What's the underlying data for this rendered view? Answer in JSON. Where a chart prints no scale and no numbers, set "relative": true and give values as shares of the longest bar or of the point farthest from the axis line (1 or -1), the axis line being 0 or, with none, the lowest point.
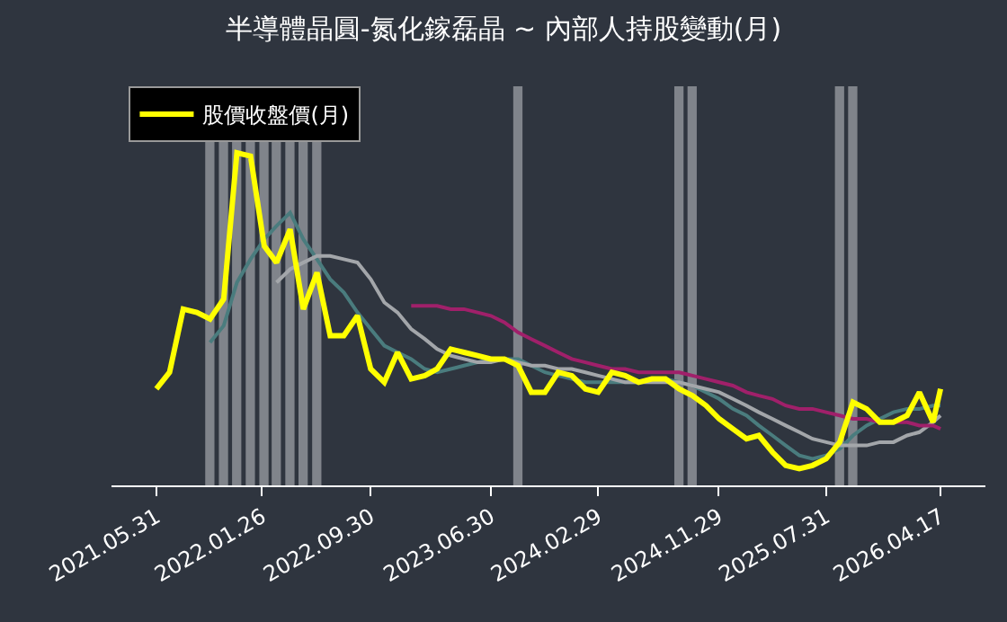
{
  "chart_data": {
    "type": "line",
    "title": "半導體晶圓-氮化鎵磊晶 ~ 內部人持股變動(月)",
    "relative": true,
    "legend": "top left",
    "grid": false,
    "marker": "none",
    "line_style": "solid",
    "xlim": [
      "2021-02-18",
      "2026-07-28"
    ],
    "xticks": [
      {
        "value": "2021-05-31",
        "label": "2021.05.31"
      },
      {
        "value": "2022-01-26",
        "label": "2022.01.26"
      },
      {
        "value": "2022-09-30",
        "label": "2022.09.30"
      },
      {
        "value": "2023-06-30",
        "label": "2023.06.30"
      },
      {
        "value": "2024-02-29",
        "label": "2024.02.29"
      },
      {
        "value": "2024-11-29",
        "label": "2024.11.29"
      },
      {
        "value": "2025-07-31",
        "label": "2025.07.31"
      },
      {
        "value": "2026-04-17",
        "label": "2026.04.17"
      }
    ],
    "x": [
      "2021-05-31",
      "2021-06-30",
      "2021-07-31",
      "2021-08-31",
      "2021-09-30",
      "2021-10-31",
      "2021-11-30",
      "2021-12-31",
      "2022-01-31",
      "2022-02-28",
      "2022-03-31",
      "2022-04-30",
      "2022-05-31",
      "2022-06-30",
      "2022-07-31",
      "2022-08-31",
      "2022-09-30",
      "2022-10-31",
      "2022-11-30",
      "2022-12-31",
      "2023-01-31",
      "2023-02-28",
      "2023-03-31",
      "2023-04-30",
      "2023-05-31",
      "2023-06-30",
      "2023-07-31",
      "2023-08-31",
      "2023-09-30",
      "2023-10-31",
      "2023-11-30",
      "2023-12-31",
      "2024-01-31",
      "2024-02-29",
      "2024-03-31",
      "2024-04-30",
      "2024-05-31",
      "2024-06-30",
      "2024-07-31",
      "2024-08-31",
      "2024-09-30",
      "2024-10-31",
      "2024-11-30",
      "2024-12-31",
      "2025-01-31",
      "2025-02-28",
      "2025-03-31",
      "2025-04-30",
      "2025-05-31",
      "2025-06-30",
      "2025-07-31",
      "2025-08-31",
      "2025-09-30",
      "2025-10-31",
      "2025-11-30",
      "2025-12-31",
      "2026-01-31",
      "2026-02-28",
      "2026-03-31",
      "2026-04-17"
    ],
    "series": [
      {
        "name": "股價收盤價(月)",
        "color": "#ffff00",
        "values": [
          0.29,
          0.34,
          0.53,
          0.52,
          0.5,
          0.56,
          1.0,
          0.99,
          0.72,
          0.67,
          0.77,
          0.53,
          0.64,
          0.45,
          0.45,
          0.51,
          0.35,
          0.31,
          0.4,
          0.32,
          0.33,
          0.35,
          0.41,
          0.4,
          0.39,
          0.38,
          0.38,
          0.36,
          0.28,
          0.28,
          0.34,
          0.33,
          0.29,
          0.28,
          0.34,
          0.33,
          0.31,
          0.32,
          0.32,
          0.29,
          0.27,
          0.24,
          0.2,
          0.17,
          0.14,
          0.15,
          0.1,
          0.06,
          0.05,
          0.06,
          0.08,
          0.13,
          0.25,
          0.23,
          0.19,
          0.19,
          0.21,
          0.28,
          0.19,
          0.29
        ]
      },
      {
        "color": "#4a7c7e",
        "values": [
          null,
          null,
          null,
          null,
          0.43,
          0.48,
          0.61,
          0.68,
          0.74,
          0.78,
          0.82,
          0.74,
          0.68,
          0.62,
          0.58,
          0.52,
          0.47,
          0.42,
          0.4,
          0.38,
          0.35,
          0.34,
          0.35,
          0.36,
          0.37,
          0.38,
          0.38,
          0.38,
          0.36,
          0.34,
          0.33,
          0.32,
          0.31,
          0.31,
          0.31,
          0.31,
          0.31,
          0.32,
          0.32,
          0.31,
          0.3,
          0.28,
          0.26,
          0.23,
          0.21,
          0.18,
          0.15,
          0.12,
          0.09,
          0.08,
          0.09,
          0.11,
          0.15,
          0.18,
          0.2,
          0.22,
          0.23,
          0.23,
          0.24,
          0.24
        ]
      },
      {
        "color": "#a3a6aa",
        "values": [
          null,
          null,
          null,
          null,
          null,
          null,
          null,
          null,
          null,
          0.61,
          0.65,
          0.67,
          0.69,
          0.69,
          0.68,
          0.67,
          0.62,
          0.55,
          0.52,
          0.47,
          0.44,
          0.41,
          0.39,
          0.38,
          0.37,
          0.37,
          0.38,
          0.37,
          0.36,
          0.36,
          0.35,
          0.35,
          0.34,
          0.33,
          0.32,
          0.31,
          0.31,
          0.31,
          0.31,
          0.31,
          0.3,
          0.29,
          0.28,
          0.26,
          0.24,
          0.22,
          0.2,
          0.18,
          0.16,
          0.14,
          0.13,
          0.12,
          0.12,
          0.12,
          0.13,
          0.13,
          0.15,
          0.16,
          0.19,
          0.21
        ]
      },
      {
        "color": "#a0206a",
        "values": [
          null,
          null,
          null,
          null,
          null,
          null,
          null,
          null,
          null,
          null,
          null,
          null,
          null,
          null,
          null,
          null,
          null,
          null,
          null,
          0.54,
          0.54,
          0.54,
          0.53,
          0.53,
          0.52,
          0.51,
          0.49,
          0.46,
          0.44,
          0.42,
          0.4,
          0.38,
          0.37,
          0.36,
          0.35,
          0.35,
          0.34,
          0.34,
          0.34,
          0.34,
          0.33,
          0.32,
          0.31,
          0.3,
          0.28,
          0.27,
          0.26,
          0.24,
          0.23,
          0.23,
          0.22,
          0.21,
          0.2,
          0.2,
          0.19,
          0.19,
          0.19,
          0.18,
          0.18,
          0.17
        ]
      }
    ],
    "bands": [
      {
        "axis": "x",
        "from": "2021-09-19",
        "to": "2021-10-10",
        "color": "#80848b"
      },
      {
        "axis": "x",
        "from": "2021-10-20",
        "to": "2021-11-10",
        "color": "#80848b"
      },
      {
        "axis": "x",
        "from": "2021-11-19",
        "to": "2021-12-10",
        "color": "#80848b"
      },
      {
        "axis": "x",
        "from": "2021-12-20",
        "to": "2022-01-10",
        "color": "#80848b"
      },
      {
        "axis": "x",
        "from": "2022-01-20",
        "to": "2022-02-10",
        "color": "#80848b"
      },
      {
        "axis": "x",
        "from": "2022-02-17",
        "to": "2022-03-10",
        "color": "#80848b"
      },
      {
        "axis": "x",
        "from": "2022-03-20",
        "to": "2022-04-10",
        "color": "#80848b"
      },
      {
        "axis": "x",
        "from": "2022-04-19",
        "to": "2022-05-10",
        "color": "#80848b"
      },
      {
        "axis": "x",
        "from": "2022-05-20",
        "to": "2022-06-10",
        "color": "#80848b"
      },
      {
        "axis": "x",
        "from": "2023-08-20",
        "to": "2023-09-10",
        "color": "#80848b"
      },
      {
        "axis": "x",
        "from": "2024-08-20",
        "to": "2024-09-10",
        "color": "#80848b"
      },
      {
        "axis": "x",
        "from": "2024-09-19",
        "to": "2024-10-10",
        "color": "#80848b"
      },
      {
        "axis": "x",
        "from": "2025-08-20",
        "to": "2025-09-10",
        "color": "#80848b"
      },
      {
        "axis": "x",
        "from": "2025-09-19",
        "to": "2025-10-10",
        "color": "#80848b"
      }
    ]
  }
}
